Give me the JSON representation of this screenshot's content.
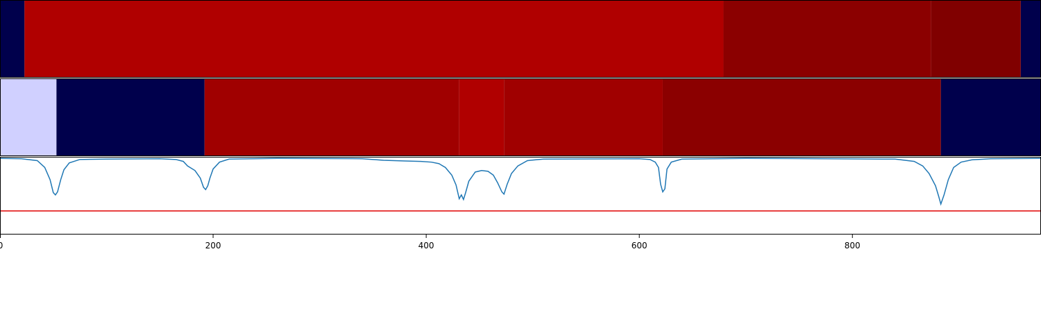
{
  "chart_data": [
    {
      "type": "segments",
      "xlim": [
        0,
        977
      ],
      "segments": [
        {
          "start": 0,
          "end": 23,
          "color": "#00004c"
        },
        {
          "start": 23,
          "end": 679,
          "color": "#b00000"
        },
        {
          "start": 679,
          "end": 874,
          "color": "#8b0000"
        },
        {
          "start": 874,
          "end": 958,
          "color": "#800000"
        },
        {
          "start": 958,
          "end": 977,
          "color": "#00004c"
        }
      ]
    },
    {
      "type": "segments",
      "xlim": [
        0,
        977
      ],
      "segments": [
        {
          "start": 0,
          "end": 53,
          "color": "#d0d0ff"
        },
        {
          "start": 53,
          "end": 192,
          "color": "#00004c"
        },
        {
          "start": 192,
          "end": 431,
          "color": "#a00000"
        },
        {
          "start": 431,
          "end": 473,
          "color": "#b00000"
        },
        {
          "start": 473,
          "end": 622,
          "color": "#a00000"
        },
        {
          "start": 622,
          "end": 883,
          "color": "#8b0000"
        },
        {
          "start": 883,
          "end": 977,
          "color": "#00004c"
        }
      ]
    },
    {
      "type": "line",
      "xlim": [
        0,
        977
      ],
      "ylim": [
        0,
        1.02
      ],
      "xticks": [
        0,
        200,
        400,
        600,
        800
      ],
      "threshold": 0.31,
      "threshold_color": "#e00000",
      "series": [
        {
          "color": "#1f77b4",
          "x": [
            0,
            20,
            35,
            42,
            47,
            50,
            52,
            54,
            57,
            60,
            65,
            75,
            100,
            150,
            165,
            172,
            176,
            183,
            188,
            191,
            193,
            195,
            197,
            200,
            206,
            215,
            260,
            340,
            360,
            380,
            395,
            405,
            412,
            418,
            424,
            428,
            431,
            433,
            435,
            437,
            440,
            446,
            452,
            458,
            463,
            467,
            471,
            473,
            476,
            480,
            486,
            495,
            510,
            600,
            610,
            615,
            618,
            620,
            622,
            624,
            626,
            630,
            640,
            700,
            840,
            858,
            866,
            872,
            878,
            881,
            883,
            886,
            890,
            895,
            902,
            912,
            930,
            977
          ],
          "values": [
            1.0,
            0.995,
            0.97,
            0.88,
            0.72,
            0.55,
            0.52,
            0.56,
            0.72,
            0.85,
            0.94,
            0.985,
            0.99,
            0.995,
            0.985,
            0.96,
            0.9,
            0.84,
            0.74,
            0.62,
            0.59,
            0.64,
            0.74,
            0.86,
            0.95,
            0.99,
            1.0,
            0.995,
            0.975,
            0.965,
            0.96,
            0.95,
            0.93,
            0.88,
            0.78,
            0.65,
            0.47,
            0.52,
            0.46,
            0.55,
            0.7,
            0.82,
            0.84,
            0.83,
            0.78,
            0.68,
            0.56,
            0.53,
            0.66,
            0.8,
            0.9,
            0.97,
            0.99,
            0.995,
            0.985,
            0.95,
            0.88,
            0.66,
            0.56,
            0.6,
            0.86,
            0.95,
            0.99,
            1.0,
            0.99,
            0.96,
            0.9,
            0.8,
            0.64,
            0.5,
            0.4,
            0.52,
            0.72,
            0.88,
            0.95,
            0.98,
            0.995,
            1.0
          ]
        }
      ]
    }
  ]
}
